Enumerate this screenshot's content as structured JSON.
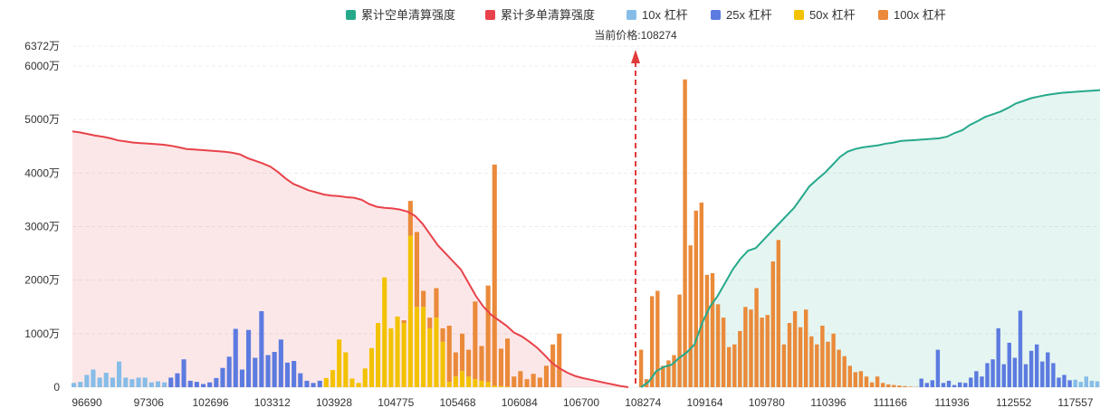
{
  "chart_data": {
    "type": "bar",
    "price_label_prefix": "当前价格:",
    "current_price": "108274",
    "legend": [
      {
        "key": "cum_short",
        "label": "累计空单清算强度",
        "color": "#26a98b",
        "kind": "line"
      },
      {
        "key": "cum_long",
        "label": "累计多单清算强度",
        "color": "#e8424a",
        "kind": "line"
      },
      {
        "key": "lev10",
        "label": "10x 杠杆",
        "color": "#86bde8",
        "kind": "bar"
      },
      {
        "key": "lev25",
        "label": "25x 杠杆",
        "color": "#5c7be0",
        "kind": "bar"
      },
      {
        "key": "lev50",
        "label": "50x 杠杆",
        "color": "#f2c200",
        "kind": "bar"
      },
      {
        "key": "lev100",
        "label": "100x 杠杆",
        "color": "#ea8a3a",
        "kind": "bar"
      }
    ],
    "y_unit": "万",
    "y_ticks": [
      "0",
      "1000万",
      "2000万",
      "3000万",
      "4000万",
      "5000万",
      "6000万",
      "6372万"
    ],
    "ylim": [
      0,
      6372
    ],
    "x_tick_labels": [
      "96690",
      "97306",
      "102696",
      "103312",
      "103928",
      "104775",
      "105468",
      "106084",
      "106700",
      "108274",
      "109164",
      "109780",
      "110396",
      "111166",
      "111936",
      "112552",
      "117557"
    ],
    "bars_left": {
      "lev10": [
        80,
        100,
        230,
        330,
        180,
        270,
        180,
        480,
        180,
        150,
        180,
        180,
        90,
        110,
        90,
        0,
        0,
        0,
        0,
        0,
        0,
        0,
        0,
        0,
        0,
        0,
        0,
        0,
        0,
        0,
        0,
        0,
        0,
        0,
        0,
        0,
        0,
        0,
        0,
        0,
        0,
        0,
        0,
        0,
        0,
        0,
        0,
        0,
        0,
        0,
        0,
        0,
        0,
        0,
        0,
        0,
        0,
        0,
        0,
        0,
        0,
        0,
        0,
        0,
        0,
        0,
        0,
        0,
        0,
        0,
        0,
        0,
        0,
        0,
        0,
        0,
        0,
        0,
        0,
        0,
        0,
        0,
        0,
        0,
        0,
        0,
        0
      ],
      "lev25": [
        0,
        0,
        0,
        0,
        0,
        0,
        0,
        0,
        0,
        0,
        0,
        0,
        0,
        0,
        0,
        180,
        260,
        520,
        120,
        100,
        60,
        90,
        170,
        360,
        570,
        1090,
        330,
        1070,
        550,
        1420,
        600,
        660,
        890,
        460,
        490,
        260,
        120,
        80,
        120,
        0,
        0,
        0,
        0,
        0,
        0,
        0,
        0,
        0,
        0,
        0,
        0,
        0,
        0,
        0,
        0,
        0,
        0,
        0,
        0,
        0,
        0,
        0,
        0,
        0,
        0,
        0,
        0,
        0,
        0,
        0,
        0,
        0,
        0,
        0,
        0,
        0,
        0,
        0,
        0,
        0,
        0,
        0,
        0,
        0,
        0,
        0,
        0
      ],
      "lev50": [
        0,
        0,
        0,
        0,
        0,
        0,
        0,
        0,
        0,
        0,
        0,
        0,
        0,
        0,
        0,
        0,
        0,
        0,
        0,
        0,
        0,
        0,
        0,
        0,
        0,
        0,
        0,
        0,
        0,
        0,
        0,
        0,
        0,
        0,
        0,
        0,
        0,
        0,
        0,
        170,
        320,
        890,
        650,
        160,
        80,
        350,
        730,
        1200,
        2050,
        1100,
        1320,
        1200,
        2830,
        1500,
        1500,
        1100,
        1300,
        850,
        100,
        200,
        300,
        200,
        150,
        120,
        100,
        30,
        20,
        10,
        0,
        0,
        0,
        0,
        0,
        0,
        0,
        0,
        0,
        0,
        0,
        0,
        0,
        0,
        0,
        0,
        0,
        0,
        0
      ],
      "lev100": [
        0,
        0,
        0,
        0,
        0,
        0,
        0,
        0,
        0,
        0,
        0,
        0,
        0,
        0,
        0,
        0,
        0,
        0,
        0,
        0,
        0,
        0,
        0,
        0,
        0,
        0,
        0,
        0,
        0,
        0,
        0,
        0,
        0,
        0,
        0,
        0,
        0,
        0,
        0,
        0,
        0,
        0,
        0,
        0,
        0,
        0,
        0,
        0,
        0,
        0,
        0,
        50,
        650,
        1400,
        300,
        200,
        550,
        250,
        1050,
        450,
        700,
        500,
        1450,
        650,
        1800,
        4130,
        700,
        900,
        200,
        300,
        150,
        250,
        180,
        400,
        800,
        1000,
        0
      ]
    },
    "bars_right": {
      "lev10": [
        0,
        0,
        0,
        0,
        0,
        0,
        0,
        0,
        0,
        0,
        0,
        0,
        0,
        0,
        0,
        0,
        0,
        0,
        0,
        0,
        0,
        0,
        0,
        0,
        0,
        0,
        0,
        0,
        0,
        0,
        0,
        0,
        0,
        0,
        0,
        0,
        0,
        0,
        0,
        0,
        0,
        0,
        0,
        0,
        0,
        0,
        0,
        0,
        0,
        0,
        0,
        0,
        0,
        0,
        0,
        0,
        0,
        0,
        0,
        0,
        0,
        0,
        0,
        0,
        0,
        0,
        0,
        0,
        0,
        0,
        0,
        0,
        0,
        0,
        0,
        0,
        0,
        0,
        0,
        140,
        100,
        200,
        120,
        110
      ],
      "lev25": [
        0,
        0,
        0,
        0,
        0,
        0,
        0,
        0,
        0,
        0,
        0,
        0,
        0,
        0,
        0,
        0,
        0,
        0,
        0,
        0,
        0,
        0,
        0,
        0,
        0,
        0,
        0,
        0,
        0,
        0,
        0,
        0,
        0,
        0,
        0,
        0,
        0,
        0,
        0,
        0,
        0,
        0,
        0,
        0,
        0,
        0,
        0,
        0,
        0,
        0,
        0,
        160,
        80,
        130,
        700,
        80,
        120,
        40,
        90,
        80,
        180,
        300,
        200,
        450,
        520,
        1100,
        430,
        830,
        550,
        1430,
        430,
        680,
        800,
        480,
        650,
        450,
        180,
        230,
        130,
        0,
        0,
        0,
        0,
        0
      ],
      "lev50": [
        0,
        0,
        0,
        0,
        0,
        0,
        0,
        0,
        0,
        0,
        0,
        0,
        0,
        0,
        0,
        0,
        0,
        0,
        0,
        0,
        0,
        0,
        0,
        0,
        0,
        0,
        0,
        0,
        0,
        0,
        0,
        0,
        0,
        0,
        0,
        0,
        0,
        0,
        0,
        0,
        0,
        0,
        0,
        0,
        0,
        0,
        0,
        0,
        0,
        0,
        0,
        0,
        0,
        0,
        0,
        0,
        0,
        0,
        0,
        0,
        0,
        0,
        0,
        0,
        0,
        0,
        0,
        0,
        0,
        0,
        0,
        0,
        0,
        0,
        0,
        0,
        0,
        0,
        0,
        0,
        0,
        0,
        0,
        0
      ],
      "lev100": [
        700,
        150,
        1700,
        1800,
        400,
        500,
        600,
        1730,
        5750,
        2650,
        3300,
        3450,
        2100,
        2130,
        1550,
        1300,
        750,
        800,
        1050,
        1500,
        1450,
        1850,
        1300,
        1350,
        2350,
        2750,
        800,
        1200,
        1420,
        1120,
        1450,
        950,
        800,
        1150,
        850,
        1000,
        700,
        580,
        400,
        280,
        300,
        200,
        90,
        200,
        80,
        50,
        40,
        30,
        20,
        10,
        5,
        0,
        0,
        0,
        0,
        0,
        0,
        0,
        0,
        0,
        0,
        0,
        0,
        0,
        0,
        0,
        0,
        0,
        0,
        0,
        0,
        0,
        0,
        0,
        0,
        0,
        0,
        0,
        0,
        0,
        0,
        0,
        0,
        0
      ]
    },
    "cum_long_curve": [
      4780,
      4760,
      4730,
      4700,
      4680,
      4650,
      4610,
      4590,
      4570,
      4560,
      4550,
      4540,
      4530,
      4510,
      4480,
      4450,
      4440,
      4430,
      4420,
      4410,
      4400,
      4380,
      4350,
      4280,
      4230,
      4180,
      4120,
      4020,
      3900,
      3800,
      3740,
      3680,
      3640,
      3600,
      3580,
      3570,
      3550,
      3540,
      3500,
      3420,
      3370,
      3350,
      3340,
      3320,
      3280,
      3200,
      3050,
      2850,
      2650,
      2500,
      2350,
      2200,
      1950,
      1700,
      1500,
      1350,
      1250,
      1150,
      1020,
      950,
      850,
      740,
      600,
      450,
      350,
      270,
      210,
      170,
      140,
      110,
      80,
      50,
      20,
      0
    ],
    "cum_short_curve": [
      0,
      100,
      300,
      380,
      420,
      550,
      650,
      800,
      1200,
      1500,
      1700,
      1950,
      2200,
      2400,
      2550,
      2600,
      2750,
      2900,
      3050,
      3200,
      3350,
      3550,
      3750,
      3880,
      4000,
      4150,
      4300,
      4400,
      4450,
      4480,
      4500,
      4520,
      4550,
      4570,
      4600,
      4610,
      4620,
      4630,
      4640,
      4650,
      4680,
      4750,
      4800,
      4900,
      4970,
      5050,
      5100,
      5150,
      5220,
      5300,
      5350,
      5400,
      5430,
      5460,
      5480,
      5500,
      5510,
      5520,
      5530,
      5540,
      5550
    ]
  }
}
